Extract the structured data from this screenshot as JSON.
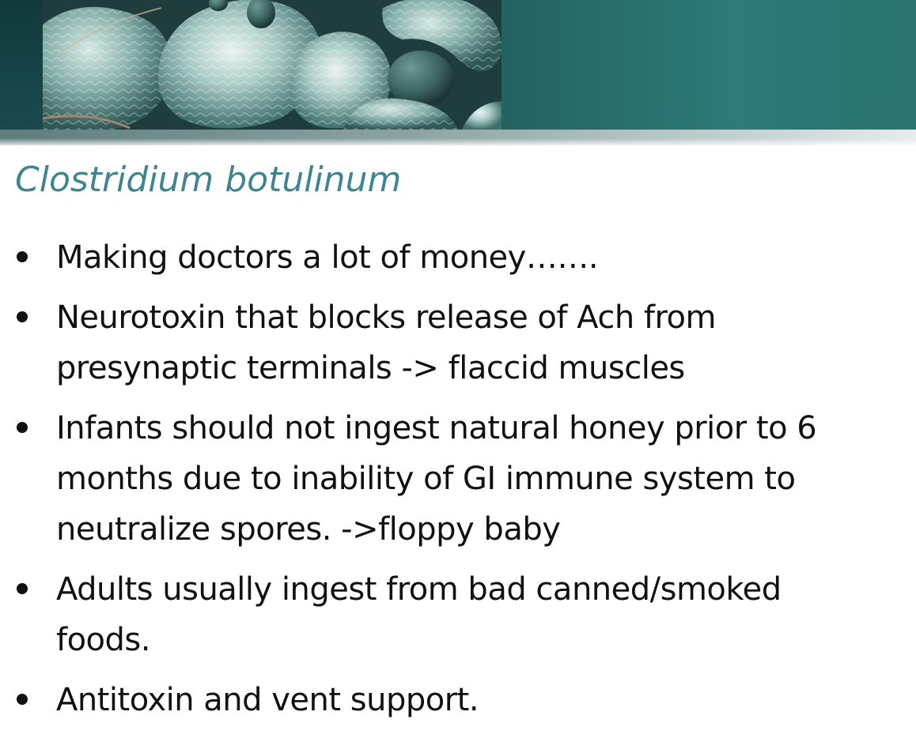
{
  "slide": {
    "title": "Clostridium botulinum",
    "bullets": [
      {
        "lines": [
          "Making doctors a lot of money……."
        ]
      },
      {
        "lines": [
          "Neurotoxin that blocks release of Ach from",
          "presynaptic terminals -> flaccid muscles"
        ]
      },
      {
        "lines": [
          "Infants should not ingest natural honey prior to 6",
          "months due to inability of GI immune system to",
          "neutralize spores. ->floppy baby"
        ]
      },
      {
        "lines": [
          "Adults usually ingest from bad canned/smoked",
          "foods."
        ]
      },
      {
        "lines": [
          "Antitoxin and vent support."
        ]
      }
    ]
  },
  "colors": {
    "title": "#3d8590",
    "body_text": "#111111",
    "banner_teal": "#2b7672",
    "banner_dark": "#123a3d"
  },
  "icons": {
    "bullet": "bullet-dot-icon",
    "header_image": "bacteria-micrograph-image"
  }
}
